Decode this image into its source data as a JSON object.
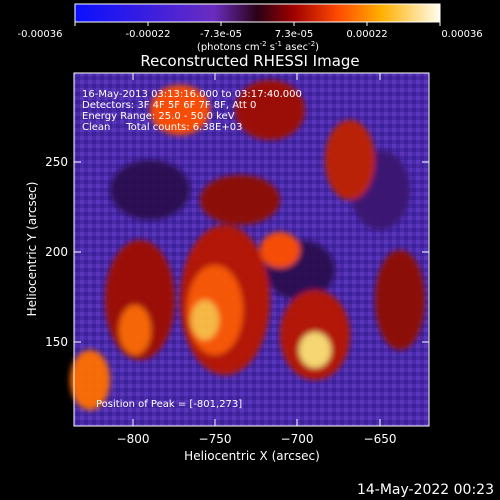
{
  "colorbar": {
    "tick_labels": [
      "-0.00036",
      "-0.00022",
      "-7.3e-05",
      "7.3e-05",
      "0.00022",
      "0.00036"
    ],
    "units_prefix": "(photons cm",
    "units_exp1": "-2",
    "units_mid": " s",
    "units_exp2": "-1",
    "units_mid2": " asec",
    "units_exp3": "-2",
    "units_suffix": ")"
  },
  "plot": {
    "title": "Reconstructed RHESSI Image",
    "xlabel": "Heliocentric X (arcsec)",
    "ylabel": "Heliocentric Y (arcsec)",
    "x_ticks": [
      "−800",
      "−750",
      "−700",
      "−650"
    ],
    "y_ticks": [
      "250",
      "200",
      "150"
    ],
    "info_lines": [
      "16-May-2013 03:13:16.000 to 03:17:40.000",
      "Detectors: 3F 4F 5F 6F 7F 8F, Att 0",
      "Energy Range: 25.0 - 50.0 keV",
      "Clean     Total counts: 6.38E+03"
    ],
    "peak_label": "Position of Peak = [-801,273]"
  },
  "footer": {
    "timestamp": "14-May-2022 00:23"
  }
}
